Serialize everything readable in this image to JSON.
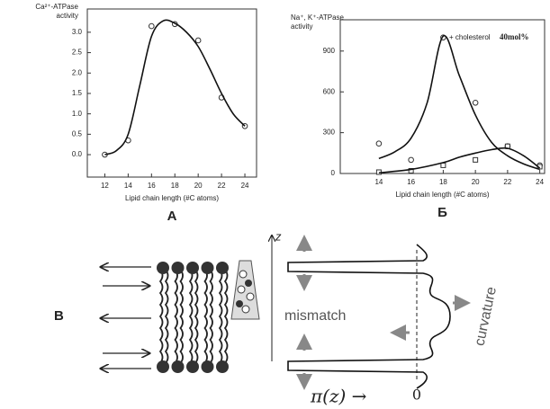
{
  "chart_data": [
    {
      "type": "scatter-fit",
      "panel": "А",
      "ylabel": [
        "Ca²⁺-ATPase",
        "activity"
      ],
      "xlabel": "Lipid chain length (#C atoms)",
      "xlim": [
        10.5,
        25
      ],
      "xticks": [
        12,
        14,
        16,
        18,
        20,
        22,
        24
      ],
      "ylim": [
        -0.55,
        3.57
      ],
      "yticks": [
        {
          "value": 0,
          "label": "0.0"
        },
        0.5,
        {
          "value": 1,
          "label": "1.0"
        },
        1.5,
        {
          "value": 2,
          "label": "2.0"
        },
        2.5,
        {
          "value": 3,
          "label": "3.0"
        }
      ],
      "series": [
        {
          "marker": "circle",
          "color": "#333",
          "x": [
            12,
            14,
            16,
            18,
            20,
            22,
            24
          ],
          "values": [
            0.0,
            0.35,
            3.15,
            3.2,
            2.8,
            1.4,
            0.7
          ]
        },
        {
          "marker": "none",
          "color": "#111",
          "x": [
            12,
            13,
            14,
            15,
            16,
            17,
            18,
            19,
            20,
            21,
            22,
            23,
            24
          ],
          "values": [
            0.0,
            0.1,
            0.5,
            1.7,
            2.9,
            3.28,
            3.22,
            3.0,
            2.65,
            2.1,
            1.5,
            1.0,
            0.7
          ]
        }
      ]
    },
    {
      "type": "scatter-fit",
      "panel": "Б",
      "ylabel": [
        "Na⁺, K⁺-ATPase",
        "activity"
      ],
      "xlabel": "Lipid chain length (#C atoms)",
      "xlim": [
        11.6,
        24.3
      ],
      "xticks": [
        14,
        16,
        18,
        20,
        22,
        24
      ],
      "ylim": [
        0,
        1130
      ],
      "yticks": [
        0,
        300,
        600,
        900
      ],
      "annotations": [
        "+ cholesterol",
        "40mol%"
      ],
      "series": [
        {
          "marker": "circle",
          "color": "#333",
          "x": [
            14,
            16,
            18,
            20,
            22,
            24
          ],
          "values": [
            220,
            100,
            1000,
            520,
            200,
            60
          ]
        },
        {
          "marker": "square",
          "color": "#333",
          "x": [
            14,
            16,
            18,
            20,
            22,
            24
          ],
          "values": [
            10,
            20,
            60,
            100,
            200,
            50
          ]
        },
        {
          "marker": "none",
          "color": "#111",
          "x": [
            14,
            15,
            16,
            17,
            18,
            19,
            20,
            21,
            22,
            23,
            24
          ],
          "values": [
            110,
            160,
            260,
            520,
            1010,
            720,
            430,
            230,
            130,
            70,
            30
          ]
        },
        {
          "marker": "none",
          "color": "#111",
          "x": [
            14,
            16,
            18,
            19,
            20,
            21,
            22,
            23,
            24
          ],
          "values": [
            5,
            30,
            80,
            120,
            150,
            175,
            185,
            130,
            40
          ]
        }
      ]
    }
  ],
  "diagram": {
    "label": "B",
    "axis": "z",
    "mismatch": "mismatch",
    "curvature": "curvature",
    "pi_axis": "π(z) →",
    "zero": "0"
  }
}
